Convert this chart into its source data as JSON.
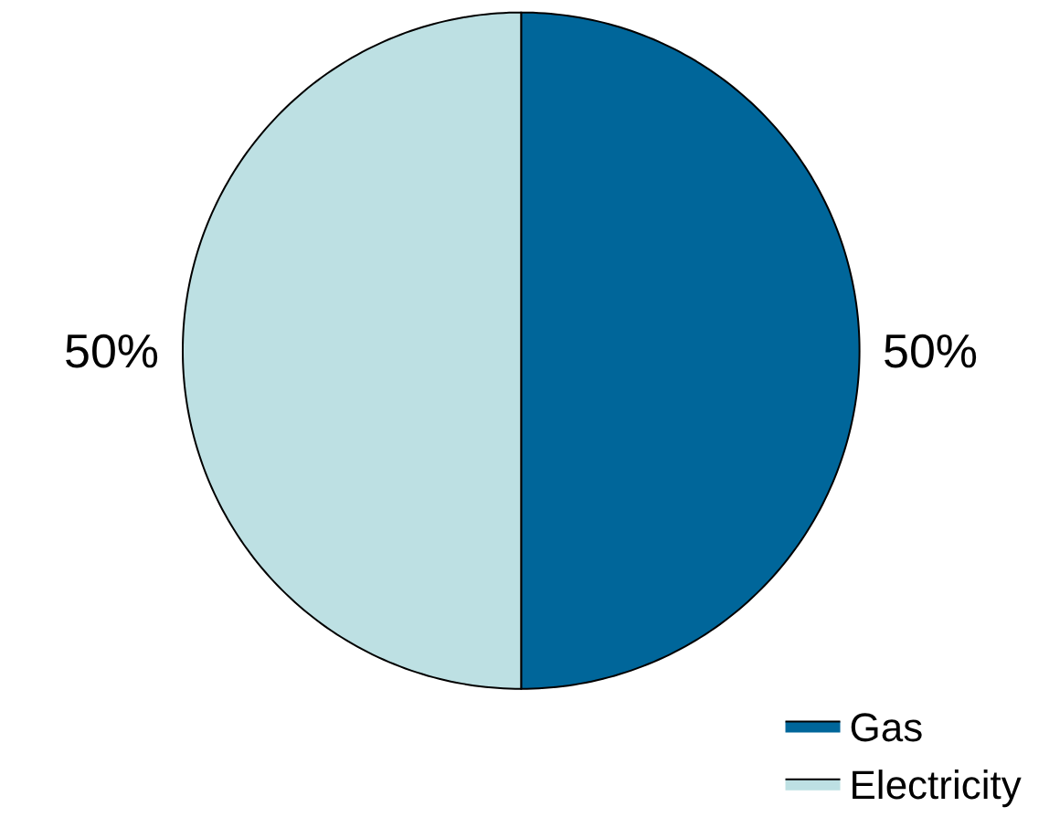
{
  "chart_data": {
    "type": "pie",
    "categories": [
      "Gas",
      "Electricity"
    ],
    "values": [
      50,
      50
    ],
    "colors": [
      "#00669a",
      "#bde0e3"
    ],
    "value_labels": [
      "50%",
      "50%"
    ],
    "legend": "bottom right"
  }
}
